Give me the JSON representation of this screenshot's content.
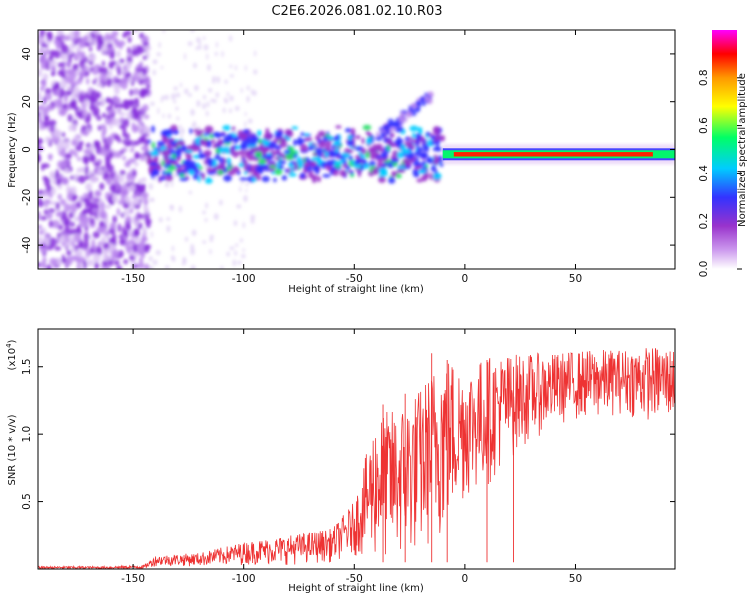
{
  "chart_data": [
    {
      "type": "heatmap",
      "title": "C2E6.2026.081.02.10.R03",
      "xlabel": "Height of straight line (km)",
      "ylabel": "Frequency (Hz)",
      "xlim": [
        -193,
        95
      ],
      "ylim": [
        -50,
        50
      ],
      "xticks": [
        -150,
        -100,
        -50,
        0,
        50
      ],
      "xtick_labels": [
        "-150",
        "-100",
        "-50",
        "0",
        "50"
      ],
      "yticks": [
        -40,
        -20,
        0,
        20,
        40
      ],
      "ytick_labels": [
        "-40",
        "-20",
        "0",
        "20",
        "40"
      ],
      "colorbar": {
        "label": "Normalized spectral amplitude",
        "range": [
          0,
          1
        ],
        "ticks": [
          0.0,
          0.2,
          0.4,
          0.6,
          0.8
        ],
        "tick_labels": [
          "0.0",
          "0.2",
          "0.4",
          "0.6",
          "0.8"
        ],
        "colors": [
          "#ffffff",
          "#cc99ee",
          "#9933cc",
          "#3333ff",
          "#00ccff",
          "#00ff66",
          "#ffff00",
          "#ff9900",
          "#ff0000",
          "#ff00ff"
        ]
      },
      "features": {
        "noise_region_x": [
          -193,
          -143
        ],
        "signal_band_center_hz": -2,
        "broad_band_x": [
          -143,
          -10
        ],
        "narrow_band_x": [
          -10,
          95
        ],
        "peak_amplitude_x": [
          -5,
          85
        ]
      }
    },
    {
      "type": "line",
      "title": "",
      "xlabel": "Height of straight line (km)",
      "ylabel": "SNR (10 * v/v)",
      "scale_label": "(x10",
      "scale_exponent": "4",
      "scale_suffix": ")",
      "xlim": [
        -193,
        95
      ],
      "ylim": [
        0,
        1.78
      ],
      "xticks": [
        -150,
        -100,
        -50,
        0,
        50
      ],
      "xtick_labels": [
        "-150",
        "-100",
        "-50",
        "0",
        "50"
      ],
      "yticks": [
        0.5,
        1.0,
        1.5
      ],
      "ytick_labels": [
        "0.5",
        "1.0",
        "1.5"
      ],
      "color": "#ee3333",
      "envelope": {
        "x": [
          -193,
          -160,
          -145,
          -140,
          -120,
          -100,
          -80,
          -60,
          -50,
          -40,
          -30,
          -20,
          -10,
          0,
          10,
          20,
          30,
          40,
          50,
          60,
          70,
          80,
          95
        ],
        "low": [
          0.0,
          0.0,
          0.0,
          0.02,
          0.02,
          0.03,
          0.03,
          0.05,
          0.1,
          0.05,
          0.03,
          0.1,
          0.2,
          0.5,
          0.6,
          0.8,
          0.95,
          1.05,
          1.1,
          1.1,
          1.15,
          1.1,
          1.1
        ],
        "high": [
          0.02,
          0.02,
          0.03,
          0.1,
          0.12,
          0.2,
          0.25,
          0.3,
          0.5,
          1.15,
          1.2,
          1.35,
          1.62,
          1.5,
          1.58,
          1.6,
          1.6,
          1.6,
          1.62,
          1.63,
          1.63,
          1.65,
          1.65
        ]
      },
      "spikes": [
        {
          "x": -37,
          "y": 1.22
        },
        {
          "x": -27,
          "y": 1.3
        },
        {
          "x": -15,
          "y": 1.6
        },
        {
          "x": -8,
          "y": 1.55
        },
        {
          "x": 10,
          "y": 1.55
        },
        {
          "x": 22,
          "y": 1.5
        }
      ]
    }
  ]
}
